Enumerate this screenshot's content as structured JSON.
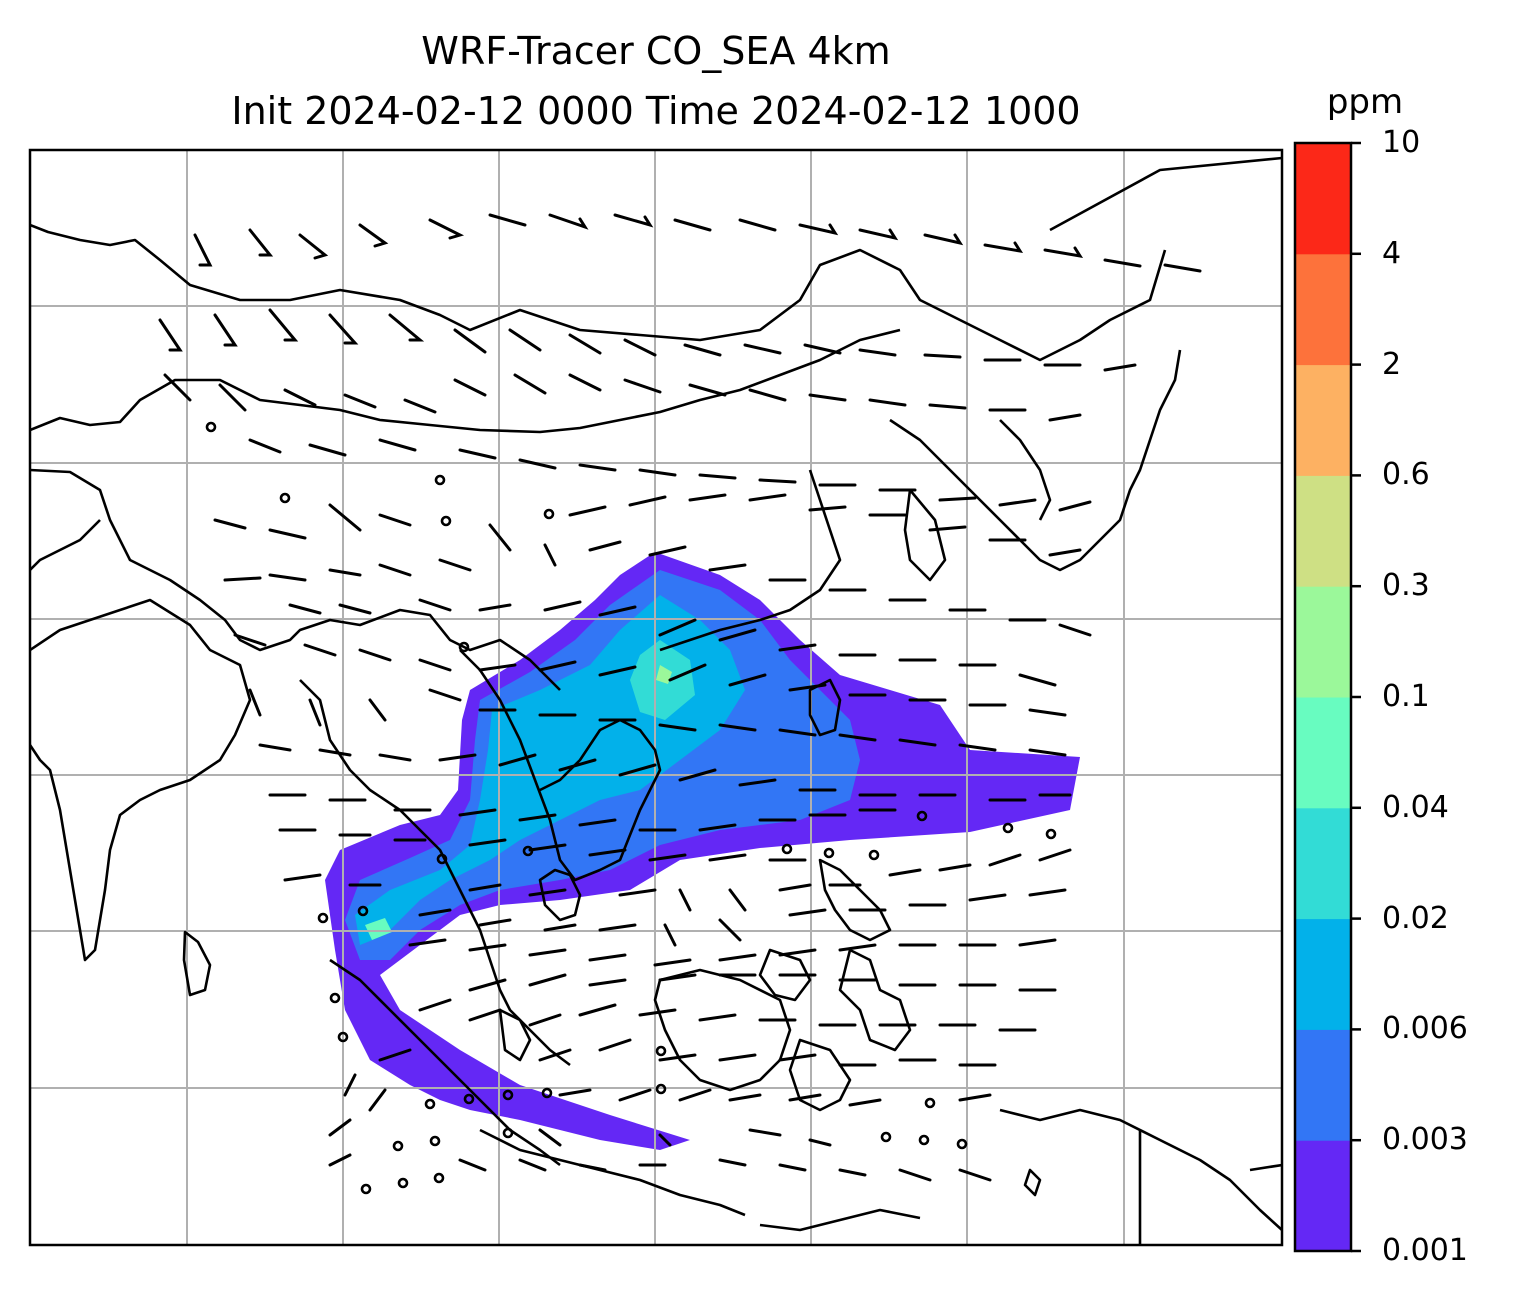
{
  "title": {
    "line1": "WRF-Tracer CO_SEA 4km",
    "line2": "Init 2024-02-12 0000 Time 2024-02-12 1000"
  },
  "colorbar": {
    "unit": "ppm",
    "tick_labels": [
      "0.001",
      "0.003",
      "0.006",
      "0.02",
      "0.04",
      "0.1",
      "0.3",
      "0.6",
      "2",
      "4",
      "10"
    ],
    "colors": [
      "#6428f5",
      "#3276f5",
      "#02b1ea",
      "#32dcd6",
      "#68fcc0",
      "#9bf89a",
      "#cee084",
      "#fdb162",
      "#fd723b",
      "#fc2818"
    ]
  },
  "map": {
    "field": "CO tracer concentration",
    "wind_barbs": true,
    "gridlines": true,
    "coastlines": true,
    "borders": true
  }
}
